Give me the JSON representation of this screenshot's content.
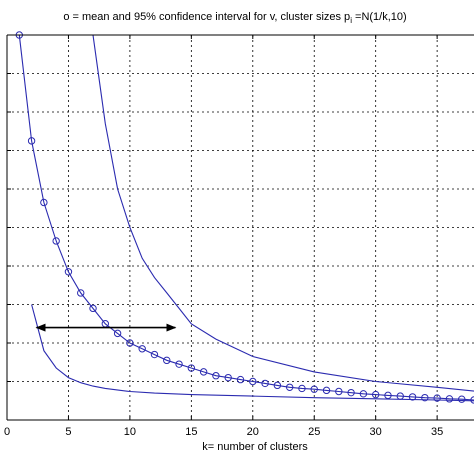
{
  "chart_data": {
    "type": "line",
    "title": {
      "prefix": "o = mean and 95% confidence interval for v,  cluster sizes p",
      "subscript": "i",
      "suffix": " =N(1/k,10)"
    },
    "xlabel": "k= number of clusters",
    "ylabel": "",
    "xlim": [
      0,
      38
    ],
    "ylim": [
      0,
      1
    ],
    "x_ticks": [
      0,
      5,
      10,
      15,
      20,
      25,
      30,
      35
    ],
    "y_gridlines": [
      0.1,
      0.2,
      0.3,
      0.4,
      0.5,
      0.6,
      0.7,
      0.8,
      0.9
    ],
    "grid": true,
    "line_color": "#2b2bb0",
    "series": [
      {
        "role": "mean",
        "marker": "circle",
        "x": [
          1,
          2,
          3,
          4,
          5,
          6,
          7,
          8,
          9,
          10,
          11,
          12,
          13,
          14,
          15,
          16,
          17,
          18,
          19,
          20,
          21,
          22,
          23,
          24,
          25,
          26,
          27,
          28,
          29,
          30,
          31,
          32,
          33,
          34,
          35,
          36,
          37,
          38
        ],
        "y": [
          1.0,
          0.725,
          0.565,
          0.465,
          0.385,
          0.33,
          0.29,
          0.25,
          0.225,
          0.2,
          0.185,
          0.17,
          0.155,
          0.145,
          0.135,
          0.125,
          0.115,
          0.11,
          0.105,
          0.1,
          0.095,
          0.09,
          0.085,
          0.082,
          0.08,
          0.077,
          0.074,
          0.071,
          0.068,
          0.066,
          0.064,
          0.062,
          0.06,
          0.058,
          0.057,
          0.055,
          0.054,
          0.052
        ]
      },
      {
        "role": "upper-bound",
        "marker": "none",
        "x": [
          7,
          8,
          9,
          10,
          11,
          12,
          13,
          14,
          15,
          17,
          20,
          25,
          30,
          35,
          38
        ],
        "y": [
          1.0,
          0.77,
          0.6,
          0.5,
          0.42,
          0.37,
          0.33,
          0.29,
          0.25,
          0.21,
          0.165,
          0.125,
          0.1,
          0.085,
          0.075
        ]
      },
      {
        "role": "lower-bound",
        "marker": "none",
        "x": [
          2,
          3,
          4,
          5,
          6,
          7,
          8,
          10,
          12,
          15,
          20,
          25,
          30,
          35,
          38
        ],
        "y": [
          0.3,
          0.18,
          0.135,
          0.11,
          0.097,
          0.088,
          0.082,
          0.074,
          0.07,
          0.066,
          0.062,
          0.058,
          0.055,
          0.052,
          0.05
        ]
      }
    ],
    "annotation": {
      "type": "double-arrow",
      "x_start": 2.4,
      "x_end": 13.7,
      "y": 0.24,
      "color": "#000000"
    }
  }
}
